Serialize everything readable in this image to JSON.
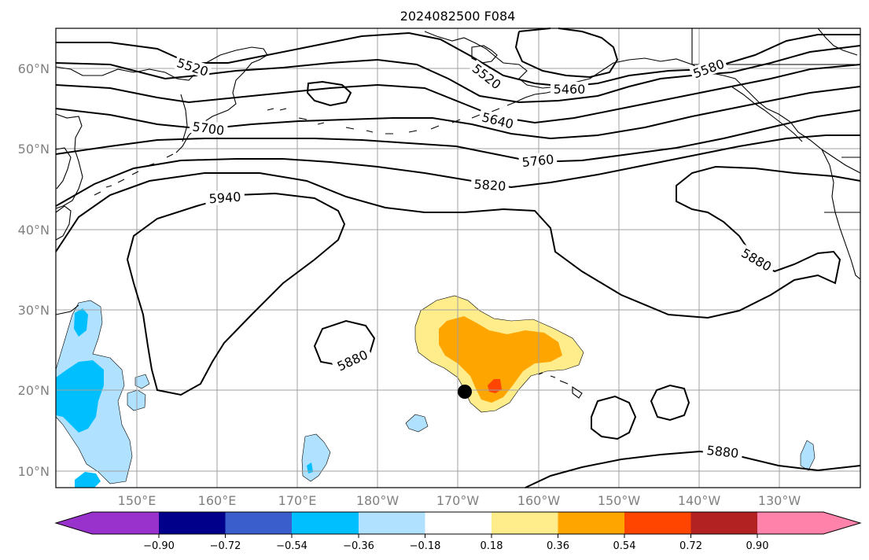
{
  "map": {
    "title": "2024082500 F084",
    "lat_labels": [
      "60°N",
      "50°N",
      "40°N",
      "30°N",
      "20°N",
      "10°N"
    ],
    "lon_labels": [
      "150°E",
      "160°E",
      "170°E",
      "180°W",
      "170°W",
      "160°W",
      "150°W",
      "140°W",
      "130°W"
    ],
    "contour_labels": {
      "c5520a": "5520",
      "c5520b": "5520",
      "c5460": "5460",
      "c5580": "5580",
      "c5700": "5700",
      "c5640": "5640",
      "c5760": "5760",
      "c5820": "5820",
      "c5940": "5940",
      "c5880a": "5880",
      "c5880b": "5880",
      "c5880c": "5880"
    }
  },
  "colorbar": {
    "tick_labels": [
      "−0.90",
      "−0.72",
      "−0.54",
      "−0.36",
      "−0.18",
      "0.18",
      "0.36",
      "0.54",
      "0.72",
      "0.90"
    ],
    "colors": [
      "#9932cc",
      "#00008b",
      "#3a5fcd",
      "#00bfff",
      "#b0e2ff",
      "#ffffff",
      "#ffec8b",
      "#ffa500",
      "#ff4500",
      "#b22222",
      "#ff82ab"
    ]
  }
}
